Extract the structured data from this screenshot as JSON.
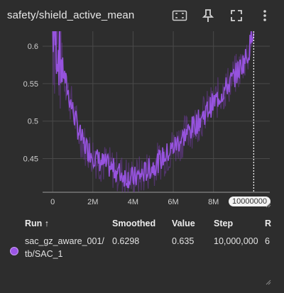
{
  "card": {
    "title": "safety/shield_active_mean",
    "toolbar": {
      "fit_icon": "fit-domain-icon",
      "pin_icon": "pin-icon",
      "fullscreen_icon": "fullscreen-icon",
      "more_icon": "more-vert-icon"
    }
  },
  "chart_data": {
    "type": "line",
    "title": "",
    "xlabel": "",
    "ylabel": "",
    "xlim": [
      0,
      10000000
    ],
    "ylim": [
      0.405,
      0.62
    ],
    "x_tick_labels": [
      "0",
      "2M",
      "4M",
      "6M",
      "8M"
    ],
    "x_ticks": [
      0,
      2000000,
      4000000,
      6000000,
      8000000
    ],
    "y_tick_labels": [
      "0.45",
      "0.5",
      "0.55",
      "0.6"
    ],
    "y_ticks": [
      0.45,
      0.5,
      0.55,
      0.6
    ],
    "grid": true,
    "hover_step_label": "10000000",
    "series": [
      {
        "color": "#9b55e6",
        "x": [
          0,
          250000,
          500000,
          750000,
          1000000,
          1250000,
          1500000,
          1750000,
          2000000,
          2250000,
          2500000,
          2750000,
          3000000,
          3250000,
          3500000,
          3750000,
          4000000,
          4250000,
          4500000,
          4750000,
          5000000,
          5250000,
          5500000,
          5750000,
          6000000,
          6250000,
          6500000,
          6750000,
          7000000,
          7250000,
          7500000,
          7750000,
          8000000,
          8250000,
          8500000,
          8750000,
          9000000,
          9250000,
          9500000,
          9750000,
          10000000
        ],
        "values": [
          0.62,
          0.6,
          0.57,
          0.54,
          0.515,
          0.49,
          0.472,
          0.462,
          0.455,
          0.448,
          0.444,
          0.44,
          0.436,
          0.432,
          0.428,
          0.425,
          0.424,
          0.426,
          0.43,
          0.435,
          0.44,
          0.446,
          0.452,
          0.458,
          0.465,
          0.472,
          0.479,
          0.486,
          0.493,
          0.5,
          0.508,
          0.516,
          0.524,
          0.532,
          0.54,
          0.549,
          0.558,
          0.568,
          0.579,
          0.592,
          0.6298
        ]
      }
    ]
  },
  "table": {
    "headers": {
      "run": "Run ↑",
      "smoothed": "Smoothed",
      "value": "Value",
      "step": "Step",
      "relative": "R"
    },
    "rows": [
      {
        "run_line1": "sac_gz_aware_001/",
        "run_line2": "tb/SAC_1",
        "smoothed": "0.6298",
        "value": "0.635",
        "step": "10,000,000",
        "relative": "6",
        "color": "#9b55e6"
      }
    ]
  }
}
